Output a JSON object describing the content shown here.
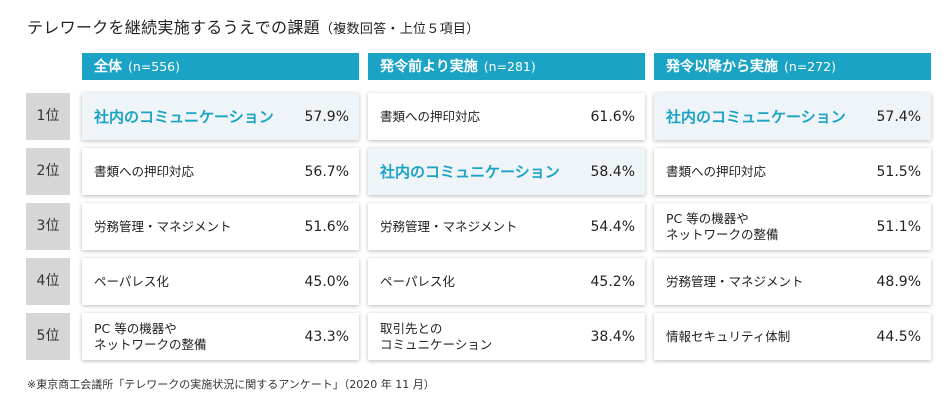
{
  "title": "テレワークを継続実施するうえでの課題",
  "subtitle": "（複数回答・上位５項目）",
  "footnote": "※東京商工会議所「テレワークの実施状況に関するアンケート」（2020 年 11 月）",
  "colors": {
    "accent": "#1ba3c6",
    "highlight_bg": "#eef4f7",
    "rank_bg": "#d6d6d6"
  },
  "chart_data": {
    "type": "table",
    "title": "テレワークを継続実施するうえでの課題",
    "subtitle": "（複数回答・上位５項目）",
    "ranks": [
      "1位",
      "2位",
      "3位",
      "4位",
      "5位"
    ],
    "groups": [
      {
        "name": "全体",
        "n": "(n=556)",
        "items": [
          {
            "label": "社内のコミュニケーション",
            "value": 57.9,
            "display": "57.9%",
            "highlight": true
          },
          {
            "label": "書類への押印対応",
            "value": 56.7,
            "display": "56.7%",
            "highlight": false
          },
          {
            "label": "労務管理・マネジメント",
            "value": 51.6,
            "display": "51.6%",
            "highlight": false
          },
          {
            "label": "ペーパレス化",
            "value": 45.0,
            "display": "45.0%",
            "highlight": false
          },
          {
            "label": "PC 等の機器や\nネットワークの整備",
            "value": 43.3,
            "display": "43.3%",
            "highlight": false
          }
        ]
      },
      {
        "name": "発令前より実施",
        "n": "(n=281)",
        "items": [
          {
            "label": "書類への押印対応",
            "value": 61.6,
            "display": "61.6%",
            "highlight": false
          },
          {
            "label": "社内のコミュニケーション",
            "value": 58.4,
            "display": "58.4%",
            "highlight": true
          },
          {
            "label": "労務管理・マネジメント",
            "value": 54.4,
            "display": "54.4%",
            "highlight": false
          },
          {
            "label": "ペーパレス化",
            "value": 45.2,
            "display": "45.2%",
            "highlight": false
          },
          {
            "label": "取引先との\nコミュニケーション",
            "value": 38.4,
            "display": "38.4%",
            "highlight": false
          }
        ]
      },
      {
        "name": "発令以降から実施",
        "n": "(n=272)",
        "items": [
          {
            "label": "社内のコミュニケーション",
            "value": 57.4,
            "display": "57.4%",
            "highlight": true
          },
          {
            "label": "書類への押印対応",
            "value": 51.5,
            "display": "51.5%",
            "highlight": false
          },
          {
            "label": "PC 等の機器や\nネットワークの整備",
            "value": 51.1,
            "display": "51.1%",
            "highlight": false
          },
          {
            "label": "労務管理・マネジメント",
            "value": 48.9,
            "display": "48.9%",
            "highlight": false
          },
          {
            "label": "情報セキュリティ体制",
            "value": 44.5,
            "display": "44.5%",
            "highlight": false
          }
        ]
      }
    ]
  }
}
